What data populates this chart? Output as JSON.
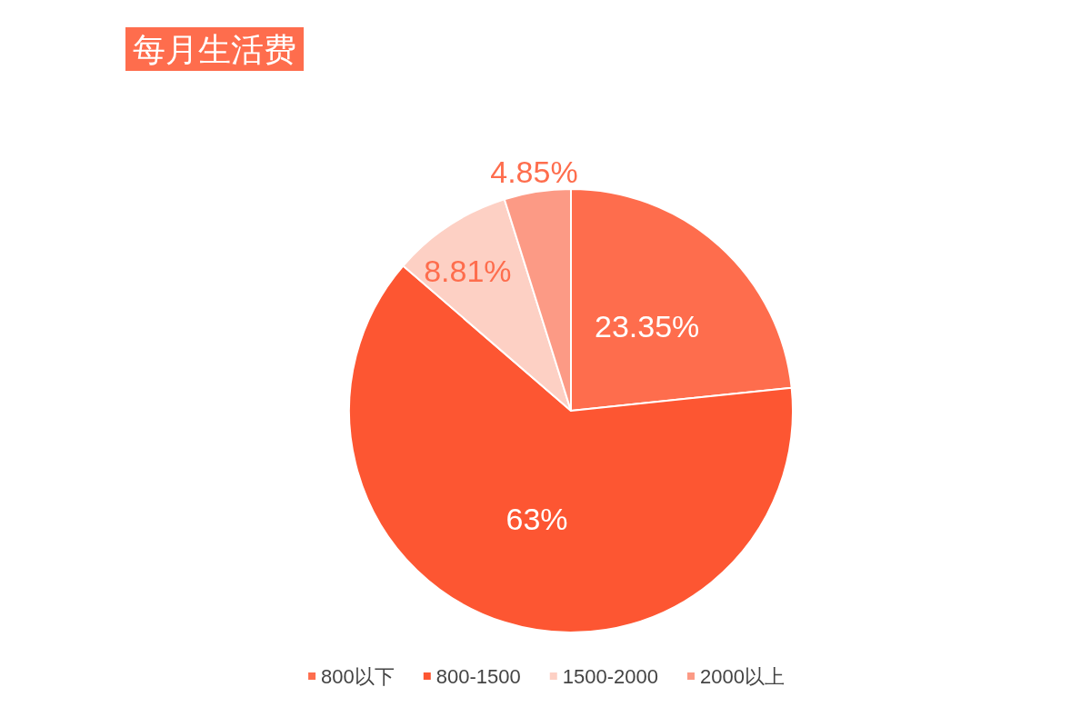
{
  "chart_data": {
    "type": "pie",
    "title": "每月生活费",
    "categories": [
      "800以下",
      "800-1500",
      "1500-2000",
      "2000以上"
    ],
    "values": [
      23.35,
      63,
      8.81,
      4.85
    ],
    "colors": [
      "#fe6d4d",
      "#fd5632",
      "#fdd0c4",
      "#fc9a85"
    ],
    "value_labels": [
      "23.35%",
      "63%",
      "8.81%",
      "4.85%"
    ],
    "legend": "bottom"
  }
}
